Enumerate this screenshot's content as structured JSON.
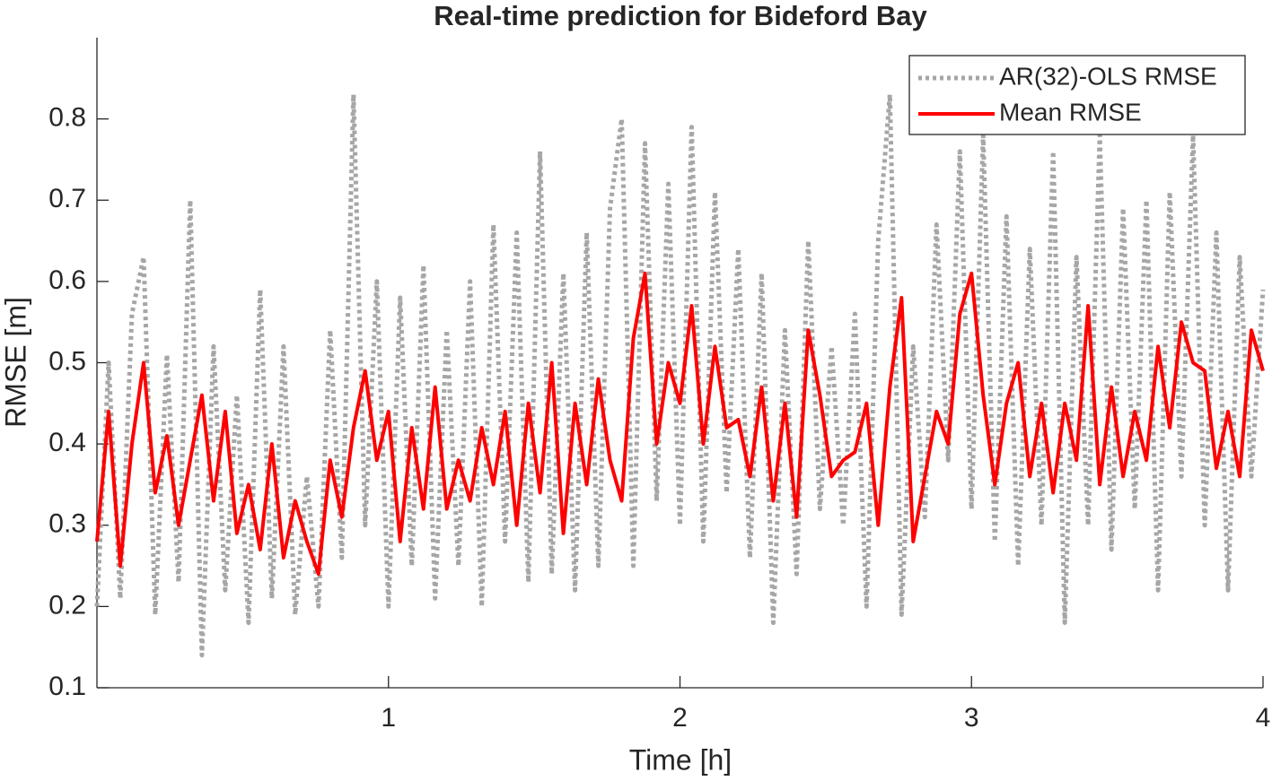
{
  "chart_data": {
    "type": "line",
    "title": "Real-time prediction for Bideford Bay",
    "xlabel": "Time [h]",
    "ylabel": "RMSE [m]",
    "xlim": [
      0,
      4
    ],
    "ylim": [
      0.1,
      0.9
    ],
    "xticks": [
      1,
      2,
      3,
      4
    ],
    "yticks": [
      0.1,
      0.2,
      0.3,
      0.4,
      0.5,
      0.6,
      0.7,
      0.8
    ],
    "legend": "northeast",
    "x": [
      0,
      0.04,
      0.08,
      0.12,
      0.16,
      0.2,
      0.24,
      0.28,
      0.32,
      0.36,
      0.4,
      0.44,
      0.48,
      0.52,
      0.56,
      0.6,
      0.64,
      0.68,
      0.72,
      0.76,
      0.8,
      0.84,
      0.88,
      0.92,
      0.96,
      1,
      1.04,
      1.08,
      1.12,
      1.16,
      1.2,
      1.24,
      1.28,
      1.32,
      1.36,
      1.4,
      1.44,
      1.48,
      1.52,
      1.56,
      1.6,
      1.64,
      1.68,
      1.72,
      1.76,
      1.8,
      1.84,
      1.88,
      1.92,
      1.96,
      2,
      2.04,
      2.08,
      2.12,
      2.16,
      2.2,
      2.24,
      2.28,
      2.32,
      2.36,
      2.4,
      2.44,
      2.48,
      2.52,
      2.56,
      2.6,
      2.64,
      2.68,
      2.72,
      2.76,
      2.8,
      2.84,
      2.88,
      2.92,
      2.96,
      3,
      3.04,
      3.08,
      3.12,
      3.16,
      3.2,
      3.24,
      3.28,
      3.32,
      3.36,
      3.4,
      3.44,
      3.48,
      3.52,
      3.56,
      3.6,
      3.64,
      3.68,
      3.72,
      3.76,
      3.8,
      3.84,
      3.88,
      3.92,
      3.96,
      4
    ],
    "series": [
      {
        "name": "AR(32)-OLS RMSE",
        "color": "#a6a6a6",
        "style": "dotted",
        "values": [
          0.2,
          0.5,
          0.21,
          0.56,
          0.63,
          0.19,
          0.51,
          0.23,
          0.7,
          0.14,
          0.52,
          0.22,
          0.46,
          0.18,
          0.59,
          0.21,
          0.52,
          0.19,
          0.36,
          0.2,
          0.54,
          0.26,
          0.83,
          0.3,
          0.6,
          0.2,
          0.58,
          0.25,
          0.62,
          0.21,
          0.54,
          0.25,
          0.6,
          0.2,
          0.67,
          0.28,
          0.66,
          0.23,
          0.76,
          0.24,
          0.61,
          0.22,
          0.66,
          0.25,
          0.69,
          0.8,
          0.25,
          0.77,
          0.33,
          0.72,
          0.3,
          0.79,
          0.28,
          0.71,
          0.34,
          0.64,
          0.26,
          0.61,
          0.18,
          0.54,
          0.24,
          0.65,
          0.32,
          0.52,
          0.3,
          0.56,
          0.2,
          0.65,
          0.83,
          0.19,
          0.52,
          0.31,
          0.67,
          0.38,
          0.76,
          0.32,
          0.78,
          0.28,
          0.68,
          0.25,
          0.64,
          0.3,
          0.76,
          0.18,
          0.63,
          0.3,
          0.78,
          0.27,
          0.69,
          0.32,
          0.7,
          0.22,
          0.71,
          0.36,
          0.78,
          0.3,
          0.66,
          0.22,
          0.63,
          0.36,
          0.59
        ]
      },
      {
        "name": "Mean RMSE",
        "color": "#ff0000",
        "style": "solid",
        "values": [
          0.28,
          0.44,
          0.25,
          0.4,
          0.5,
          0.34,
          0.41,
          0.3,
          0.38,
          0.46,
          0.33,
          0.44,
          0.29,
          0.35,
          0.27,
          0.4,
          0.26,
          0.33,
          0.28,
          0.24,
          0.38,
          0.31,
          0.42,
          0.49,
          0.38,
          0.44,
          0.28,
          0.42,
          0.32,
          0.47,
          0.32,
          0.38,
          0.33,
          0.42,
          0.35,
          0.44,
          0.3,
          0.45,
          0.34,
          0.5,
          0.29,
          0.45,
          0.35,
          0.48,
          0.38,
          0.33,
          0.53,
          0.61,
          0.4,
          0.5,
          0.45,
          0.57,
          0.4,
          0.52,
          0.42,
          0.43,
          0.36,
          0.47,
          0.33,
          0.45,
          0.31,
          0.54,
          0.46,
          0.36,
          0.38,
          0.39,
          0.45,
          0.3,
          0.47,
          0.58,
          0.28,
          0.36,
          0.44,
          0.4,
          0.56,
          0.61,
          0.46,
          0.35,
          0.45,
          0.5,
          0.36,
          0.45,
          0.34,
          0.45,
          0.38,
          0.57,
          0.35,
          0.47,
          0.36,
          0.44,
          0.38,
          0.52,
          0.42,
          0.55,
          0.5,
          0.49,
          0.37,
          0.44,
          0.36,
          0.54,
          0.49
        ]
      }
    ]
  }
}
